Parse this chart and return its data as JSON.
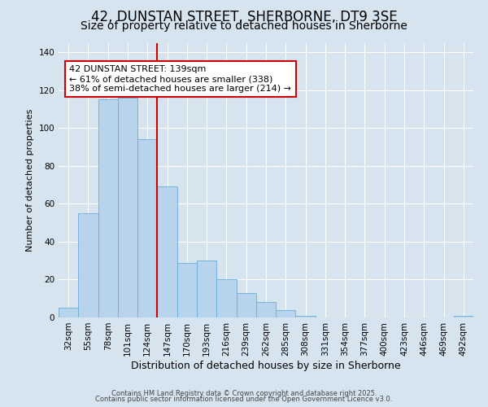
{
  "title": "42, DUNSTAN STREET, SHERBORNE, DT9 3SE",
  "subtitle": "Size of property relative to detached houses in Sherborne",
  "xlabel": "Distribution of detached houses by size in Sherborne",
  "ylabel": "Number of detached properties",
  "bar_labels": [
    "32sqm",
    "55sqm",
    "78sqm",
    "101sqm",
    "124sqm",
    "147sqm",
    "170sqm",
    "193sqm",
    "216sqm",
    "239sqm",
    "262sqm",
    "285sqm",
    "308sqm",
    "331sqm",
    "354sqm",
    "377sqm",
    "400sqm",
    "423sqm",
    "446sqm",
    "469sqm",
    "492sqm"
  ],
  "bar_heights": [
    5,
    55,
    115,
    116,
    94,
    69,
    29,
    30,
    20,
    13,
    8,
    4,
    1,
    0,
    0,
    0,
    0,
    0,
    0,
    0,
    1
  ],
  "bar_color": "#b8d4ec",
  "bar_edge_color": "#6aaed6",
  "vline_color": "#cc0000",
  "annotation_text": "42 DUNSTAN STREET: 139sqm\n← 61% of detached houses are smaller (338)\n38% of semi-detached houses are larger (214) →",
  "annotation_box_facecolor": "#ffffff",
  "annotation_box_edgecolor": "#cc0000",
  "ylim": [
    0,
    145
  ],
  "yticks": [
    0,
    20,
    40,
    60,
    80,
    100,
    120,
    140
  ],
  "background_color": "#d6e4f0",
  "plot_bg_color": "#d6e4f0",
  "grid_color": "#ffffff",
  "footer1": "Contains HM Land Registry data © Crown copyright and database right 2025.",
  "footer2": "Contains public sector information licensed under the Open Government Licence v3.0.",
  "title_fontsize": 12,
  "subtitle_fontsize": 10,
  "xlabel_fontsize": 9,
  "ylabel_fontsize": 8,
  "tick_fontsize": 7.5,
  "annotation_fontsize": 8,
  "footer_fontsize": 6
}
